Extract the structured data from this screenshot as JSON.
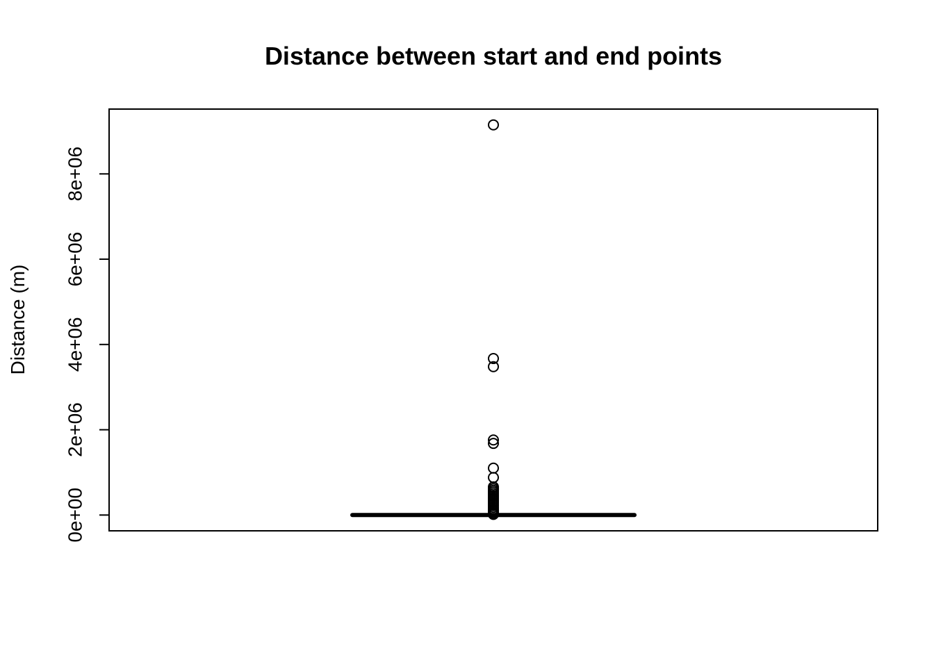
{
  "chart_data": {
    "type": "boxplot",
    "title": "Distance between start and end points",
    "ylabel": "Distance (m)",
    "xlabel": "",
    "ylim": [
      -370000,
      9520000
    ],
    "y_ticks": [
      0,
      2000000,
      4000000,
      6000000,
      8000000
    ],
    "y_tick_labels": [
      "0e+00",
      "2e+06",
      "4e+06",
      "6e+06",
      "8e+06"
    ],
    "box": {
      "min": 0,
      "q1": 0,
      "median": 0,
      "q3": 0,
      "max": 0
    },
    "outliers": [
      9150000,
      3670000,
      3480000,
      1760000,
      1680000,
      1100000,
      880000,
      660000,
      620000,
      580000,
      540000,
      500000,
      460000,
      420000,
      380000,
      340000,
      300000,
      260000,
      220000,
      180000,
      140000,
      110000,
      80000,
      50000,
      30000,
      15000
    ],
    "grid": false
  }
}
